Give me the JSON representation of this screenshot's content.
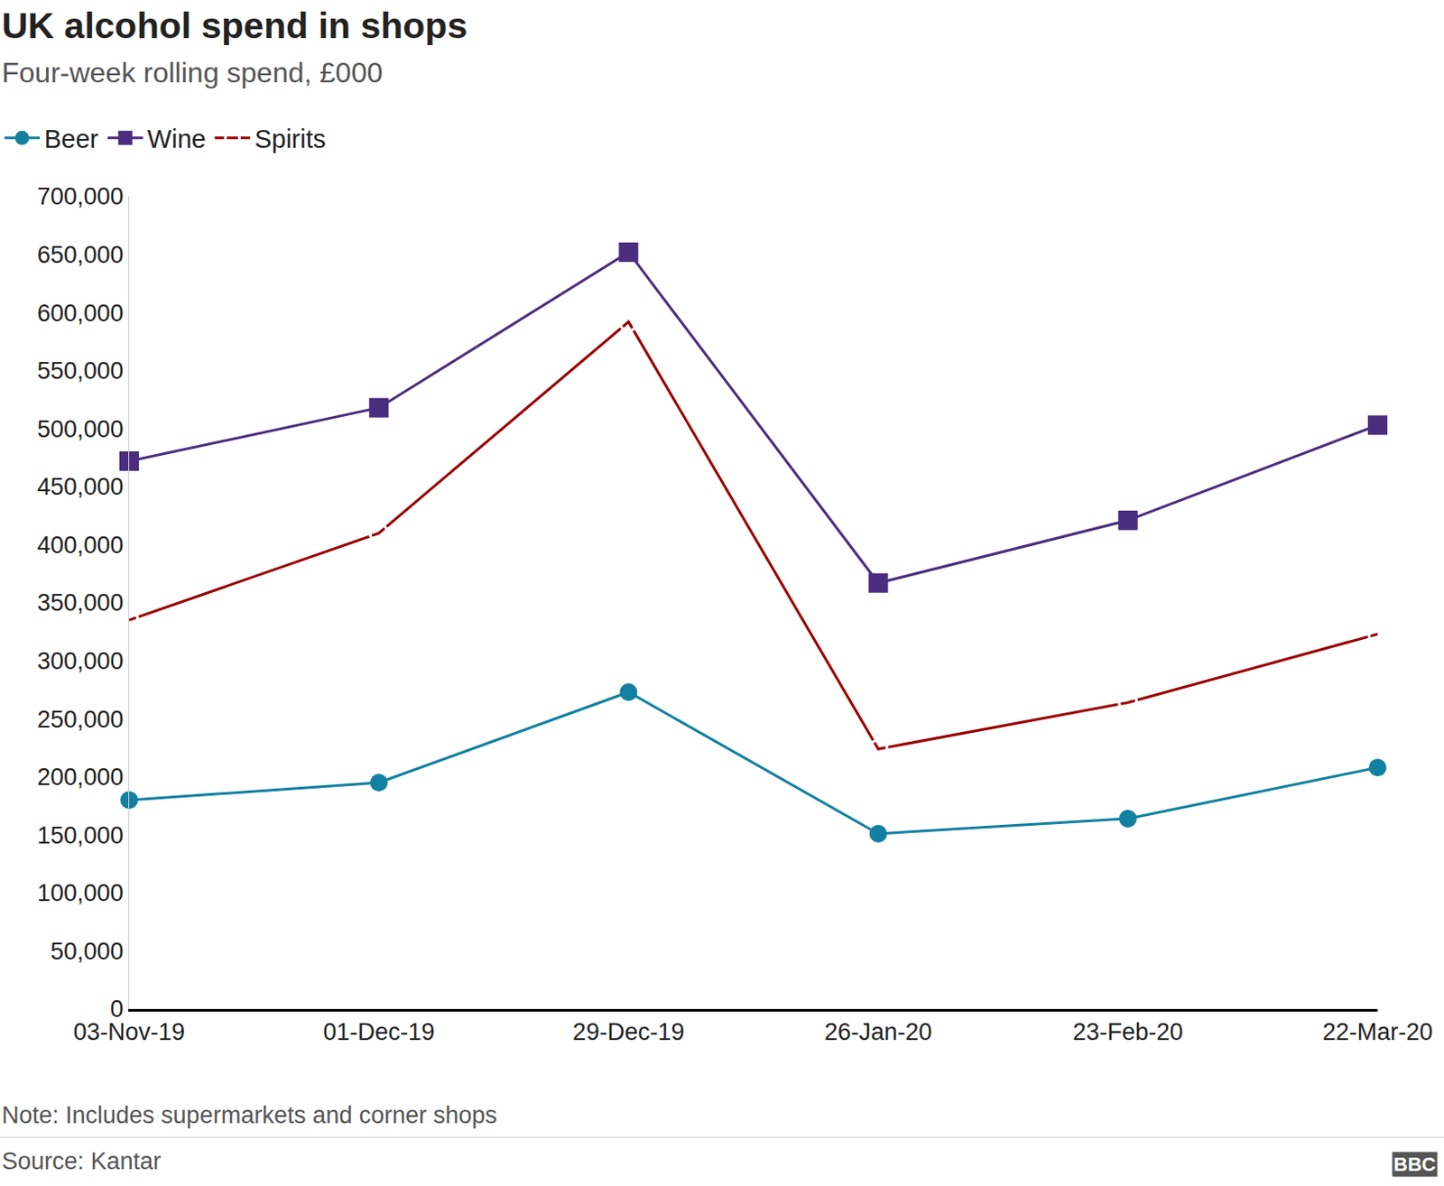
{
  "chart_data": {
    "type": "line",
    "title": "UK alcohol spend in shops",
    "subtitle": "Four-week rolling spend, £000",
    "note": "Note: Includes supermarkets and corner shops",
    "source": "Source: Kantar",
    "logo": "BBC",
    "categories": [
      "03-Nov-19",
      "01-Dec-19",
      "29-Dec-19",
      "26-Jan-20",
      "23-Feb-20",
      "22-Mar-20"
    ],
    "series": [
      {
        "name": "Beer",
        "color": "#1380a1",
        "marker": "circle",
        "values": [
          180000,
          195000,
          273000,
          151000,
          164000,
          208000
        ]
      },
      {
        "name": "Wine",
        "color": "#4b2d7f",
        "marker": "square",
        "values": [
          472000,
          518000,
          652000,
          367000,
          421000,
          503000
        ]
      },
      {
        "name": "Spirits",
        "color": "#990000",
        "marker": "circle-open",
        "values": [
          335000,
          410000,
          592000,
          224000,
          264000,
          323000
        ]
      }
    ],
    "ylim": [
      0,
      700000
    ],
    "yticks": [
      0,
      {
        "value": 50000,
        "label": "50,000"
      },
      {
        "value": 100000,
        "label": "100,000"
      },
      {
        "value": 150000,
        "label": "150,000"
      },
      {
        "value": 200000,
        "label": "200,000"
      },
      {
        "value": 250000,
        "label": "250,000"
      },
      {
        "value": 300000,
        "label": "300,000"
      },
      {
        "value": 350000,
        "label": "350,000"
      },
      {
        "value": 400000,
        "label": "400,000"
      },
      {
        "value": 450000,
        "label": "450,000"
      },
      {
        "value": 500000,
        "label": "500,000"
      },
      {
        "value": 550000,
        "label": "550,000"
      },
      {
        "value": 600000,
        "label": "600,000"
      },
      {
        "value": 650000,
        "label": "650,000"
      },
      {
        "value": 700000,
        "label": "700,000"
      }
    ],
    "grid": false,
    "legend": "top-left"
  }
}
